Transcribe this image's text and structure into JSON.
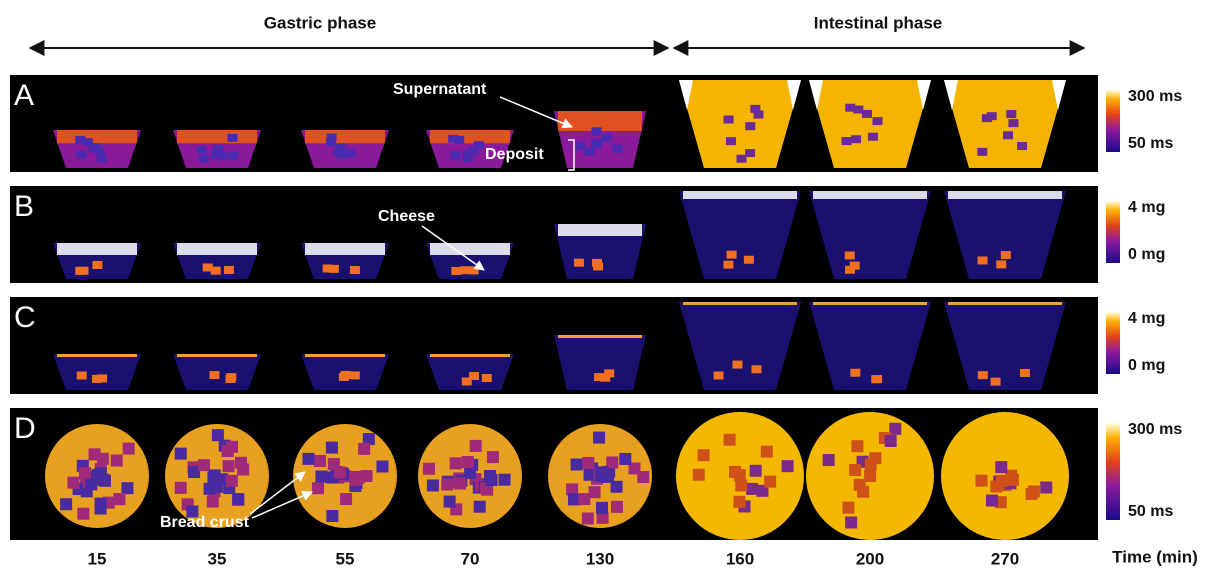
{
  "header": {
    "gastric": "Gastric phase",
    "intestinal": "Intestinal phase"
  },
  "rows": [
    {
      "letter": "A",
      "colorbar": {
        "max": "300 ms",
        "min": "50 ms"
      }
    },
    {
      "letter": "B",
      "colorbar": {
        "max": "4 mg",
        "min": "0  mg"
      }
    },
    {
      "letter": "C",
      "colorbar": {
        "max": "4 mg",
        "min": "0  mg"
      }
    },
    {
      "letter": "D",
      "colorbar": {
        "max": "300 ms",
        "min": "50 ms"
      }
    }
  ],
  "annotations": {
    "supernatant": "Supernatant",
    "deposit": "Deposit",
    "cheese": "Cheese",
    "bread_crust": "Bread crust"
  },
  "times": [
    "15",
    "35",
    "55",
    "70",
    "130",
    "160",
    "200",
    "270"
  ],
  "time_label": "Time (min)"
}
